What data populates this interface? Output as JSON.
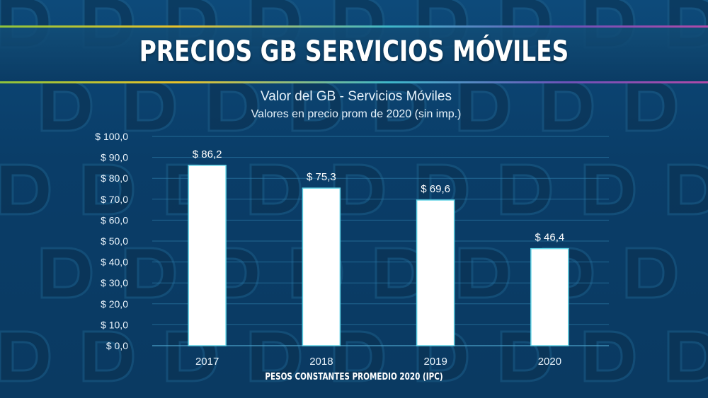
{
  "header": {
    "title": "PRECIOS GB SERVICIOS MÓVILES"
  },
  "footer": {
    "note": "PESOS CONSTANTES  PROMEDIO 2020 (IPC)"
  },
  "colors": {
    "bar": "#ffffff",
    "bar_glow": "#5fd3e6",
    "background": "#0a3d68"
  },
  "chart_data": {
    "type": "bar",
    "title": "Valor del GB - Servicios Móviles",
    "subtitle": "Valores en precio prom de 2020 (sin imp.)",
    "categories": [
      "2017",
      "2018",
      "2019",
      "2020"
    ],
    "values": [
      86.2,
      75.3,
      69.6,
      46.4
    ],
    "value_labels": [
      "$ 86,2",
      "$ 75,3",
      "$ 69,6",
      "$ 46,4"
    ],
    "ylim": [
      0,
      100
    ],
    "yticks": [
      0,
      10,
      20,
      30,
      40,
      50,
      60,
      70,
      80,
      90,
      100
    ],
    "ytick_labels": [
      "$ 0,0",
      "$ 10,0",
      "$ 20,0",
      "$ 30,0",
      "$ 40,0",
      "$ 50,0",
      "$ 60,0",
      "$ 70,0",
      "$ 80,0",
      "$ 90,0",
      "$ 100,0"
    ],
    "grid": true,
    "legend": "none"
  }
}
